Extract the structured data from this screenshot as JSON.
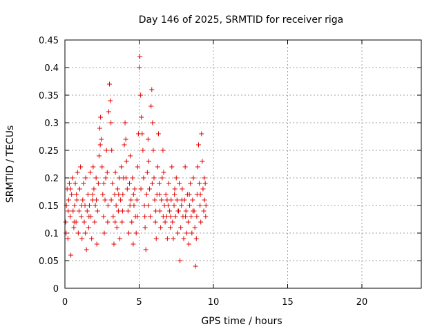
{
  "chart_data": {
    "type": "scatter",
    "title": "Day 146 of 2025, SRMTID for receiver riga",
    "xlabel": "GPS time / hours",
    "ylabel": "SRMTID / TECUs",
    "xlim": [
      0,
      24
    ],
    "ylim": [
      0,
      0.45
    ],
    "xticks": [
      "0",
      "5",
      "10",
      "15",
      "20"
    ],
    "xtick_values": [
      0,
      5,
      10,
      15,
      20
    ],
    "yticks": [
      "0",
      "0.05",
      "0.1",
      "0.15",
      "0.2",
      "0.25",
      "0.3",
      "0.35",
      "0.4",
      "0.45"
    ],
    "ytick_values": [
      0,
      0.05,
      0.1,
      0.15,
      0.2,
      0.25,
      0.3,
      0.35,
      0.4,
      0.45
    ],
    "grid": true,
    "marker": "plus",
    "color": "#e00000",
    "series": [
      {
        "points": [
          [
            0.05,
            0.12
          ],
          [
            0.1,
            0.15
          ],
          [
            0.15,
            0.18
          ],
          [
            0.2,
            0.09
          ],
          [
            0.25,
            0.16
          ],
          [
            0.3,
            0.19
          ],
          [
            0.35,
            0.13
          ],
          [
            0.4,
            0.06
          ],
          [
            0.45,
            0.17
          ],
          [
            0.5,
            0.2
          ],
          [
            0.55,
            0.14
          ],
          [
            0.6,
            0.11
          ],
          [
            0.65,
            0.15
          ],
          [
            0.7,
            0.19
          ],
          [
            0.75,
            0.12
          ],
          [
            0.8,
            0.16
          ],
          [
            0.85,
            0.21
          ],
          [
            0.9,
            0.1
          ],
          [
            0.95,
            0.14
          ],
          [
            1.0,
            0.18
          ],
          [
            1.05,
            0.22
          ],
          [
            1.1,
            0.13
          ],
          [
            1.15,
            0.09
          ],
          [
            1.2,
            0.16
          ],
          [
            1.25,
            0.19
          ],
          [
            1.3,
            0.12
          ],
          [
            1.35,
            0.15
          ],
          [
            1.4,
            0.2
          ],
          [
            1.45,
            0.07
          ],
          [
            1.5,
            0.14
          ],
          [
            1.55,
            0.17
          ],
          [
            1.6,
            0.11
          ],
          [
            1.65,
            0.15
          ],
          [
            1.7,
            0.21
          ],
          [
            1.75,
            0.13
          ],
          [
            1.8,
            0.09
          ],
          [
            1.85,
            0.16
          ],
          [
            1.9,
            0.22
          ],
          [
            1.95,
            0.18
          ],
          [
            2.0,
            0.12
          ],
          [
            2.05,
            0.15
          ],
          [
            2.1,
            0.2
          ],
          [
            2.15,
            0.08
          ],
          [
            2.2,
            0.14
          ],
          [
            2.25,
            0.19
          ],
          [
            2.3,
            0.24
          ],
          [
            2.35,
            0.29
          ],
          [
            2.4,
            0.31
          ],
          [
            2.45,
            0.27
          ],
          [
            2.5,
            0.22
          ],
          [
            2.55,
            0.17
          ],
          [
            2.6,
            0.13
          ],
          [
            2.65,
            0.1
          ],
          [
            2.7,
            0.16
          ],
          [
            2.75,
            0.2
          ],
          [
            2.8,
            0.25
          ],
          [
            2.85,
            0.21
          ],
          [
            2.9,
            0.15
          ],
          [
            2.95,
            0.32
          ],
          [
            3.0,
            0.37
          ],
          [
            3.05,
            0.34
          ],
          [
            3.1,
            0.3
          ],
          [
            3.15,
            0.25
          ],
          [
            3.2,
            0.19
          ],
          [
            3.25,
            0.13
          ],
          [
            3.3,
            0.08
          ],
          [
            3.35,
            0.17
          ],
          [
            3.4,
            0.21
          ],
          [
            3.45,
            0.15
          ],
          [
            3.5,
            0.11
          ],
          [
            3.55,
            0.18
          ],
          [
            3.6,
            0.14
          ],
          [
            3.65,
            0.2
          ],
          [
            3.7,
            0.09
          ],
          [
            3.75,
            0.16
          ],
          [
            3.8,
            0.22
          ],
          [
            3.85,
            0.12
          ],
          [
            3.9,
            0.17
          ],
          [
            3.95,
            0.2
          ],
          [
            4.0,
            0.26
          ],
          [
            4.05,
            0.3
          ],
          [
            4.1,
            0.27
          ],
          [
            4.15,
            0.23
          ],
          [
            4.2,
            0.18
          ],
          [
            4.25,
            0.14
          ],
          [
            4.3,
            0.1
          ],
          [
            4.35,
            0.19
          ],
          [
            4.4,
            0.24
          ],
          [
            4.45,
            0.16
          ],
          [
            4.5,
            0.12
          ],
          [
            4.55,
            0.2
          ],
          [
            4.6,
            0.08
          ],
          [
            4.65,
            0.15
          ],
          [
            4.7,
            0.18
          ],
          [
            4.75,
            0.13
          ],
          [
            4.8,
            0.1
          ],
          [
            4.85,
            0.16
          ],
          [
            4.9,
            0.22
          ],
          [
            4.95,
            0.28
          ],
          [
            5.0,
            0.4
          ],
          [
            5.05,
            0.42
          ],
          [
            5.1,
            0.35
          ],
          [
            5.15,
            0.31
          ],
          [
            5.2,
            0.28
          ],
          [
            5.25,
            0.25
          ],
          [
            5.3,
            0.2
          ],
          [
            5.35,
            0.15
          ],
          [
            5.4,
            0.11
          ],
          [
            5.45,
            0.07
          ],
          [
            5.5,
            0.17
          ],
          [
            5.55,
            0.21
          ],
          [
            5.6,
            0.27
          ],
          [
            5.65,
            0.23
          ],
          [
            5.7,
            0.18
          ],
          [
            5.75,
            0.13
          ],
          [
            5.8,
            0.33
          ],
          [
            5.85,
            0.36
          ],
          [
            5.9,
            0.3
          ],
          [
            5.95,
            0.25
          ],
          [
            6.0,
            0.2
          ],
          [
            6.05,
            0.16
          ],
          [
            6.1,
            0.12
          ],
          [
            6.15,
            0.09
          ],
          [
            6.2,
            0.17
          ],
          [
            6.25,
            0.22
          ],
          [
            6.3,
            0.28
          ],
          [
            6.35,
            0.19
          ],
          [
            6.4,
            0.14
          ],
          [
            6.45,
            0.11
          ],
          [
            6.5,
            0.16
          ],
          [
            6.55,
            0.2
          ],
          [
            6.6,
            0.25
          ],
          [
            6.65,
            0.21
          ],
          [
            6.7,
            0.15
          ],
          [
            6.75,
            0.12
          ],
          [
            6.8,
            0.17
          ],
          [
            6.85,
            0.13
          ],
          [
            6.9,
            0.09
          ],
          [
            6.95,
            0.15
          ],
          [
            7.0,
            0.19
          ],
          [
            7.05,
            0.14
          ],
          [
            7.1,
            0.11
          ],
          [
            7.15,
            0.16
          ],
          [
            7.2,
            0.22
          ],
          [
            7.25,
            0.12
          ],
          [
            7.3,
            0.09
          ],
          [
            7.35,
            0.15
          ],
          [
            7.4,
            0.18
          ],
          [
            7.45,
            0.13
          ],
          [
            7.5,
            0.2
          ],
          [
            7.55,
            0.16
          ],
          [
            7.6,
            0.1
          ],
          [
            7.65,
            0.14
          ],
          [
            7.7,
            0.19
          ],
          [
            7.75,
            0.05
          ],
          [
            7.8,
            0.11
          ],
          [
            7.85,
            0.15
          ],
          [
            7.9,
            0.18
          ],
          [
            7.95,
            0.13
          ],
          [
            8.0,
            0.09
          ],
          [
            8.05,
            0.16
          ],
          [
            8.1,
            0.22
          ],
          [
            8.15,
            0.14
          ],
          [
            8.2,
            0.1
          ],
          [
            8.25,
            0.17
          ],
          [
            8.3,
            0.12
          ],
          [
            8.35,
            0.08
          ],
          [
            8.4,
            0.15
          ],
          [
            8.45,
            0.19
          ],
          [
            8.5,
            0.13
          ],
          [
            8.55,
            0.1
          ],
          [
            8.6,
            0.16
          ],
          [
            8.65,
            0.2
          ],
          [
            8.7,
            0.14
          ],
          [
            8.75,
            0.11
          ],
          [
            8.8,
            0.04
          ],
          [
            8.85,
            0.09
          ],
          [
            8.9,
            0.17
          ],
          [
            8.95,
            0.22
          ],
          [
            9.0,
            0.26
          ],
          [
            9.05,
            0.19
          ],
          [
            9.1,
            0.15
          ],
          [
            9.15,
            0.12
          ],
          [
            9.2,
            0.28
          ],
          [
            9.25,
            0.23
          ],
          [
            9.3,
            0.18
          ],
          [
            9.35,
            0.14
          ],
          [
            9.4,
            0.16
          ],
          [
            9.45,
            0.19
          ],
          [
            9.5,
            0.15
          ],
          [
            0.08,
            0.1
          ],
          [
            0.22,
            0.14
          ],
          [
            0.38,
            0.18
          ],
          [
            0.62,
            0.12
          ],
          [
            0.78,
            0.17
          ],
          [
            1.12,
            0.15
          ],
          [
            1.38,
            0.1
          ],
          [
            1.62,
            0.13
          ],
          [
            1.88,
            0.17
          ],
          [
            2.12,
            0.16
          ],
          [
            2.38,
            0.26
          ],
          [
            2.62,
            0.19
          ],
          [
            2.88,
            0.12
          ],
          [
            3.12,
            0.16
          ],
          [
            3.38,
            0.12
          ],
          [
            3.62,
            0.17
          ],
          [
            3.88,
            0.14
          ],
          [
            4.12,
            0.2
          ],
          [
            4.38,
            0.15
          ],
          [
            4.62,
            0.17
          ],
          [
            4.88,
            0.13
          ],
          [
            5.12,
            0.18
          ],
          [
            5.38,
            0.13
          ],
          [
            5.62,
            0.15
          ],
          [
            5.88,
            0.19
          ],
          [
            6.12,
            0.14
          ],
          [
            6.38,
            0.17
          ],
          [
            6.62,
            0.13
          ],
          [
            6.88,
            0.16
          ],
          [
            7.12,
            0.13
          ],
          [
            7.38,
            0.17
          ],
          [
            7.62,
            0.14
          ],
          [
            7.88,
            0.16
          ],
          [
            8.12,
            0.13
          ],
          [
            8.38,
            0.17
          ],
          [
            8.62,
            0.14
          ],
          [
            8.88,
            0.13
          ],
          [
            9.12,
            0.17
          ],
          [
            9.38,
            0.2
          ],
          [
            9.48,
            0.13
          ]
        ]
      }
    ]
  }
}
